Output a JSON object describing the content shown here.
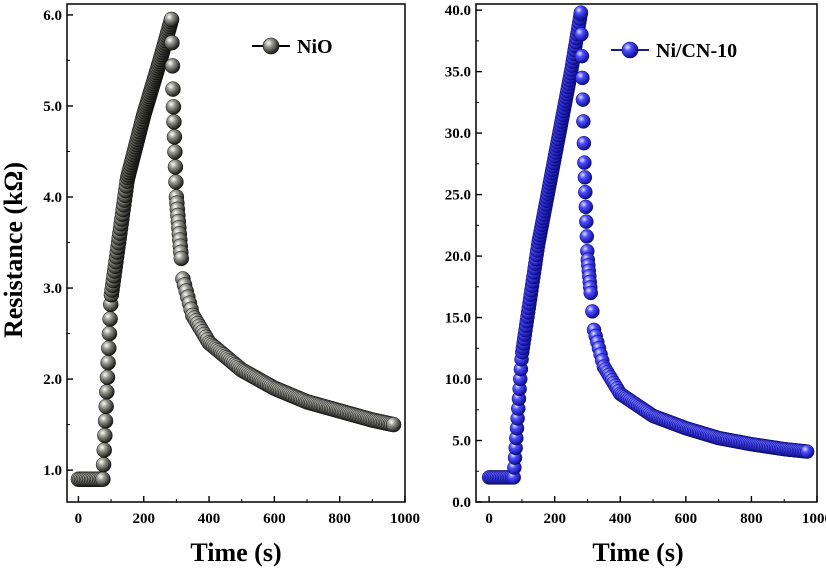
{
  "colors": {
    "nio": "#3a3a36",
    "nicn": "#2424e8"
  },
  "chart_data": [
    {
      "type": "scatter",
      "title": "",
      "xlabel": "Time (s)",
      "ylabel": "Resistance (kΩ)",
      "xlim": [
        -35,
        1000
      ],
      "ylim": [
        0.65,
        6.12
      ],
      "x_ticks": [
        0,
        200,
        400,
        600,
        800,
        1000
      ],
      "x_tick_labels": [
        "0",
        "200",
        "400",
        "600",
        "800",
        "1000"
      ],
      "y_ticks": [
        1,
        2,
        3,
        4,
        5,
        6
      ],
      "y_tick_labels": [
        "1.0",
        "2.0",
        "3.0",
        "4.0",
        "5.0",
        "6.0"
      ],
      "legend": "top-right",
      "series": [
        {
          "name": "NiO",
          "color": "#3a3a36",
          "baseline": 0.9,
          "rise_start": 75,
          "peak_time": 285,
          "peak": 5.95,
          "end_time": 965,
          "end_value": 1.5,
          "rise_points": [
            [
              75,
              0.9
            ],
            [
              100,
              2.9
            ],
            [
              150,
              4.2
            ],
            [
              200,
              4.9
            ],
            [
              250,
              5.5
            ],
            [
              285,
              5.95
            ]
          ],
          "decay_points": [
            [
              285,
              5.95
            ],
            [
              290,
              5.1
            ],
            [
              300,
              4.0
            ],
            [
              320,
              3.1
            ],
            [
              350,
              2.7
            ],
            [
              400,
              2.4
            ],
            [
              500,
              2.1
            ],
            [
              600,
              1.9
            ],
            [
              700,
              1.75
            ],
            [
              800,
              1.65
            ],
            [
              900,
              1.55
            ],
            [
              965,
              1.5
            ]
          ]
        }
      ]
    },
    {
      "type": "scatter",
      "title": "",
      "xlabel": "Time (s)",
      "ylabel": "",
      "xlim": [
        -40,
        1000
      ],
      "ylim": [
        0,
        40.5
      ],
      "x_ticks": [
        0,
        200,
        400,
        600,
        800,
        1000
      ],
      "x_tick_labels": [
        "0",
        "200",
        "400",
        "600",
        "800",
        "1000"
      ],
      "y_ticks": [
        0,
        5,
        10,
        15,
        20,
        25,
        30,
        35,
        40
      ],
      "y_tick_labels": [
        "0.0",
        "5.0",
        "10.0",
        "15.0",
        "20.0",
        "25.0",
        "30.0",
        "35.0",
        "40.0"
      ],
      "legend": "top-right",
      "series": [
        {
          "name": "Ni/CN-10",
          "color": "#2424e8",
          "baseline": 2.0,
          "rise_start": 75,
          "peak_time": 280,
          "peak": 39.8,
          "end_time": 970,
          "end_value": 4.1,
          "rise_points": [
            [
              75,
              2.0
            ],
            [
              100,
              12.0
            ],
            [
              150,
              21.0
            ],
            [
              200,
              28.0
            ],
            [
              250,
              35.0
            ],
            [
              280,
              39.8
            ]
          ],
          "decay_points": [
            [
              280,
              39.8
            ],
            [
              290,
              28.0
            ],
            [
              300,
              20.0
            ],
            [
              320,
              14.0
            ],
            [
              350,
              11.0
            ],
            [
              400,
              8.8
            ],
            [
              500,
              7.0
            ],
            [
              600,
              6.0
            ],
            [
              700,
              5.2
            ],
            [
              800,
              4.7
            ],
            [
              900,
              4.3
            ],
            [
              970,
              4.1
            ]
          ]
        }
      ]
    }
  ]
}
